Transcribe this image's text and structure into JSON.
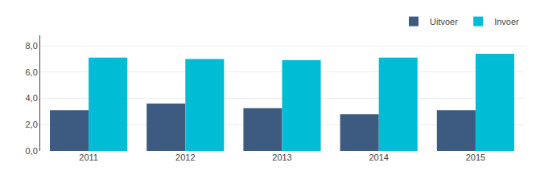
{
  "chart_data": {
    "type": "bar",
    "categories": [
      "2011",
      "2012",
      "2013",
      "2014",
      "2015"
    ],
    "series": [
      {
        "name": "Uitvoer",
        "color": "#3d5a80",
        "values": [
          3.1,
          3.6,
          3.25,
          2.8,
          3.1
        ]
      },
      {
        "name": "Invoer",
        "color": "#00bcd4",
        "values": [
          7.1,
          7.0,
          6.9,
          7.1,
          7.4
        ]
      }
    ],
    "ylim": [
      0,
      8.8
    ],
    "yticks": [
      {
        "value": 0.0,
        "label": "0,0"
      },
      {
        "value": 2.0,
        "label": "2,0"
      },
      {
        "value": 4.0,
        "label": "4,0"
      },
      {
        "value": 6.0,
        "label": "6,0"
      },
      {
        "value": 8.0,
        "label": "8,0"
      }
    ],
    "grid": true,
    "legend": "top right"
  }
}
